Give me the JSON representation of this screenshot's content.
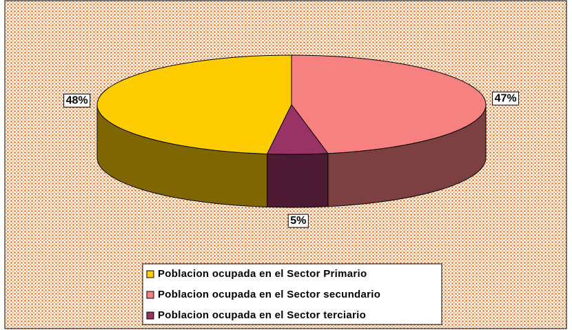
{
  "chart_data": {
    "type": "pie",
    "categories": [
      "Poblacion ocupada en el Sector Primario",
      "Poblacion ocupada en el Sector  secundario",
      "Poblacion ocupada en el Sector terciario"
    ],
    "values": [
      48,
      47,
      5
    ],
    "value_labels": [
      "48%",
      "47%",
      "5%"
    ],
    "colors": [
      "#ffcc00",
      "#f78080",
      "#993366"
    ],
    "legend": "bottom"
  }
}
